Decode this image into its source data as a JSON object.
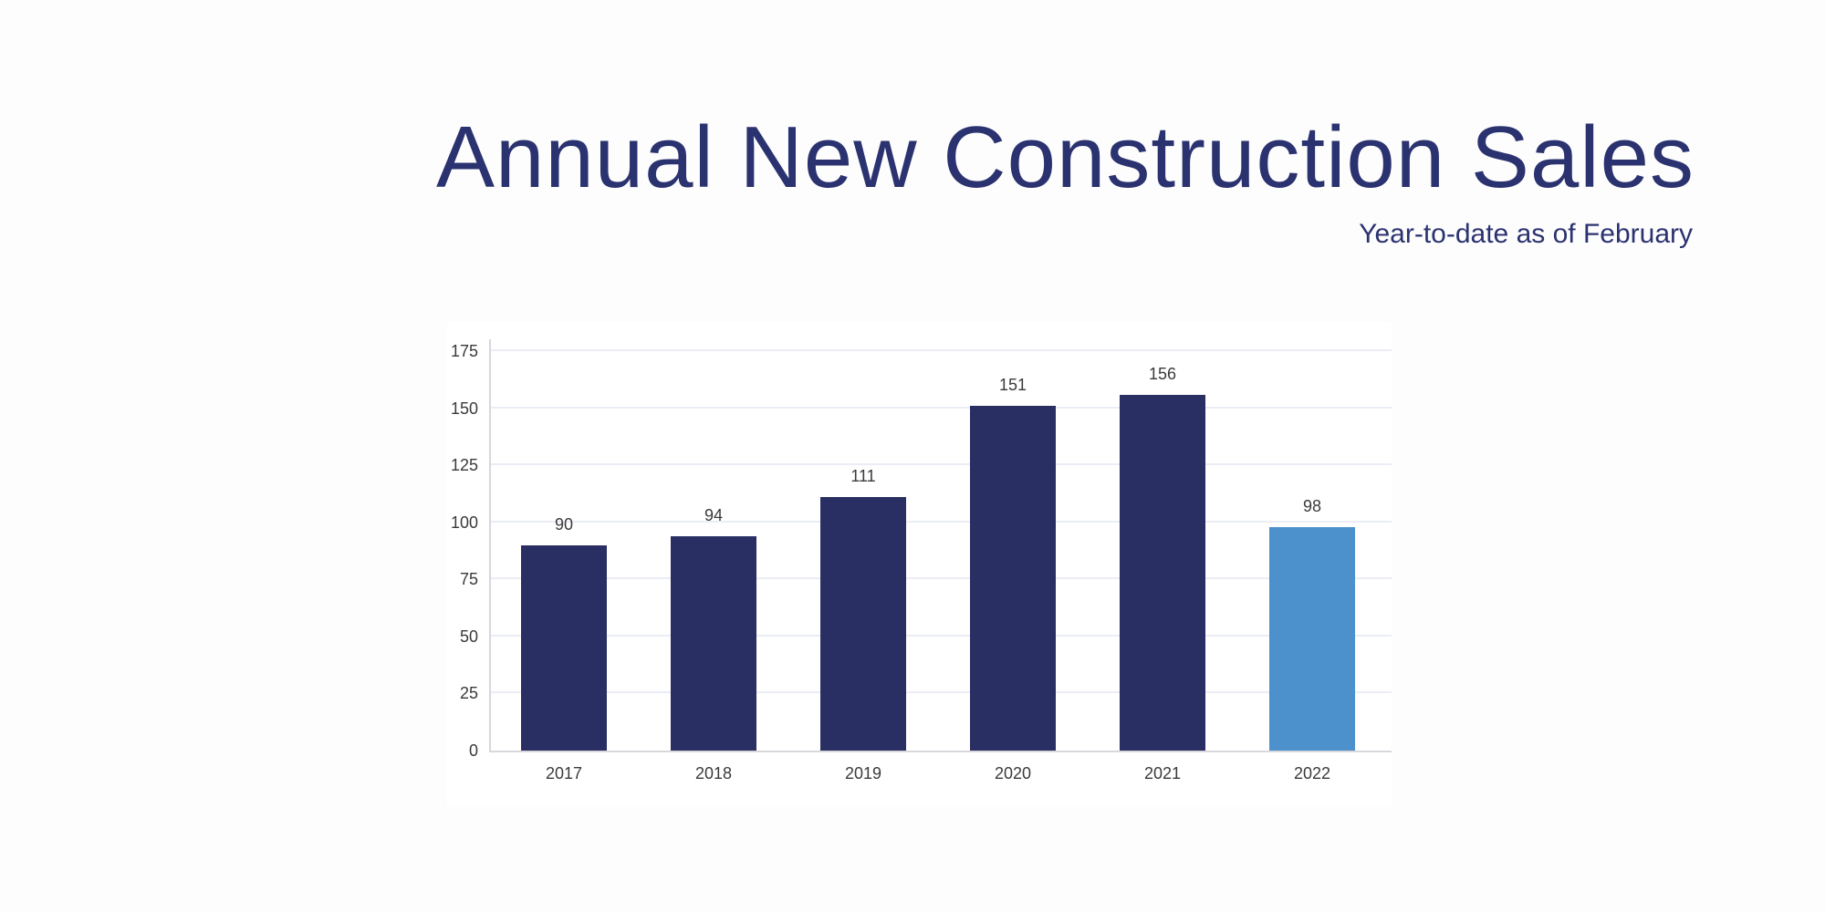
{
  "header": {
    "title": "Annual New Construction Sales",
    "subtitle": "Year-to-date as of February",
    "title_color": "#2b3270"
  },
  "chart_data": {
    "type": "bar",
    "title": "Annual New Construction Sales",
    "subtitle": "Year-to-date as of February",
    "categories": [
      "2017",
      "2018",
      "2019",
      "2020",
      "2021",
      "2022"
    ],
    "values": [
      90,
      94,
      111,
      151,
      156,
      98
    ],
    "bar_colors": [
      "#292f62",
      "#292f62",
      "#292f62",
      "#292f62",
      "#292f62",
      "#4c90cc"
    ],
    "highlight_category": "2022",
    "value_labels_shown": true,
    "xlabel": "",
    "ylabel": "",
    "ylim": [
      0,
      175
    ],
    "yticks": [
      0,
      25,
      50,
      75,
      100,
      125,
      150,
      175
    ],
    "grid": "horizontal",
    "legend": "none",
    "colors": {
      "bar_primary": "#292f62",
      "bar_highlight": "#4c90cc",
      "gridline": "#eaedf5",
      "axis_line": "#d8d8dc",
      "tick_text": "#3a3a3a",
      "title_text": "#2b3270",
      "background": "#ffffff"
    }
  }
}
